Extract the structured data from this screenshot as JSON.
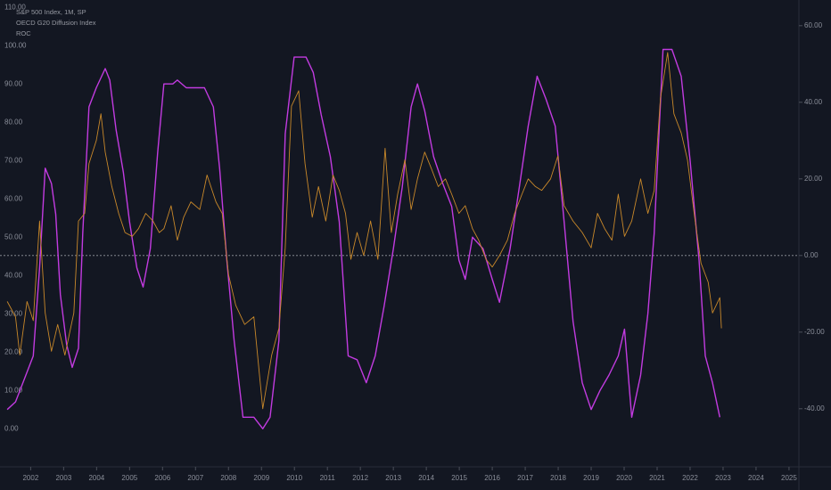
{
  "chart_data": {
    "type": "line",
    "title": "S&P 500 Index, 1M, SP",
    "series": [
      {
        "name": "OECD G20 Diffusion Index",
        "color": "#c23be0",
        "axis": "y",
        "x": [
          2001.29,
          2001.54,
          2001.81,
          2002.08,
          2002.27,
          2002.44,
          2002.63,
          2002.76,
          2002.9,
          2003.09,
          2003.26,
          2003.45,
          2003.58,
          2003.77,
          2003.99,
          2004.26,
          2004.4,
          2004.59,
          2004.81,
          2005.0,
          2005.22,
          2005.41,
          2005.63,
          2005.85,
          2006.04,
          2006.31,
          2006.45,
          2006.72,
          2006.99,
          2007.27,
          2007.54,
          2007.73,
          2007.95,
          2008.17,
          2008.44,
          2008.77,
          2009.04,
          2009.26,
          2009.53,
          2009.72,
          2009.99,
          2010.35,
          2010.57,
          2010.81,
          2011.09,
          2011.36,
          2011.63,
          2011.9,
          2012.18,
          2012.45,
          2012.72,
          2013.0,
          2013.27,
          2013.54,
          2013.73,
          2013.95,
          2014.22,
          2014.5,
          2014.77,
          2014.99,
          2015.18,
          2015.4,
          2015.72,
          2016.0,
          2016.22,
          2016.54,
          2016.82,
          2017.09,
          2017.36,
          2017.63,
          2017.91,
          2018.18,
          2018.45,
          2018.73,
          2019.0,
          2019.27,
          2019.54,
          2019.82,
          2020.01,
          2020.23,
          2020.5,
          2020.72,
          2020.91,
          2021.18,
          2021.45,
          2021.73,
          2022.0,
          2022.27,
          2022.46,
          2022.68,
          2022.9
        ],
        "values": [
          5,
          7,
          13,
          19,
          42,
          68,
          64,
          56,
          35,
          22,
          16,
          21,
          51,
          84,
          89,
          94,
          91,
          78,
          67,
          54,
          42,
          37,
          47,
          72,
          90,
          90,
          91,
          89,
          89,
          89,
          84,
          68,
          44,
          23,
          3,
          3,
          0,
          3,
          23,
          77,
          97,
          97,
          93,
          82,
          71,
          54,
          19,
          18,
          12,
          19,
          32,
          47,
          63,
          84,
          90,
          83,
          71,
          64,
          58,
          44,
          39,
          50,
          47,
          39,
          33,
          47,
          63,
          79,
          92,
          86,
          79,
          54,
          28,
          12,
          5,
          10,
          14,
          19,
          26,
          3,
          14,
          30,
          51,
          99,
          99,
          92,
          70,
          44,
          19,
          12,
          3
        ]
      },
      {
        "name": "ROC",
        "color": "#c8882a",
        "axis": "y2",
        "x": [
          2001.29,
          2001.54,
          2001.67,
          2001.89,
          2002.08,
          2002.27,
          2002.44,
          2002.63,
          2002.82,
          2003.04,
          2003.31,
          2003.45,
          2003.64,
          2003.77,
          2003.99,
          2004.13,
          2004.26,
          2004.46,
          2004.67,
          2004.86,
          2005.08,
          2005.27,
          2005.49,
          2005.71,
          2005.9,
          2006.04,
          2006.26,
          2006.45,
          2006.64,
          2006.86,
          2007.13,
          2007.35,
          2007.62,
          2007.81,
          2008.0,
          2008.22,
          2008.49,
          2008.77,
          2009.04,
          2009.31,
          2009.53,
          2009.72,
          2009.91,
          2010.13,
          2010.32,
          2010.54,
          2010.73,
          2010.95,
          2011.17,
          2011.36,
          2011.55,
          2011.71,
          2011.9,
          2012.1,
          2012.31,
          2012.53,
          2012.75,
          2012.94,
          2013.13,
          2013.35,
          2013.54,
          2013.73,
          2013.95,
          2014.14,
          2014.36,
          2014.58,
          2014.77,
          2014.99,
          2015.18,
          2015.4,
          2015.59,
          2015.81,
          2016.0,
          2016.22,
          2016.46,
          2016.68,
          2016.9,
          2017.09,
          2017.31,
          2017.5,
          2017.77,
          2017.99,
          2018.18,
          2018.45,
          2018.73,
          2019.0,
          2019.19,
          2019.41,
          2019.63,
          2019.82,
          2020.01,
          2020.23,
          2020.5,
          2020.72,
          2020.91,
          2021.1,
          2021.32,
          2021.51,
          2021.73,
          2021.92,
          2022.14,
          2022.33,
          2022.55,
          2022.68,
          2022.9,
          2022.95
        ],
        "values": [
          -12,
          -16,
          -26,
          -12,
          -17,
          9,
          -15,
          -25,
          -18,
          -26,
          -15,
          9,
          11,
          24,
          30,
          37,
          27,
          18,
          11,
          6,
          5,
          7,
          11,
          9,
          6,
          7,
          13,
          4,
          10,
          14,
          12,
          21,
          14,
          11,
          -5,
          -13,
          -18,
          -16,
          -40,
          -26,
          -19,
          2,
          39,
          43,
          24,
          10,
          18,
          9,
          21,
          17,
          11,
          -1,
          6,
          0,
          9,
          -1,
          28,
          6,
          16,
          25,
          12,
          20,
          27,
          23,
          18,
          20,
          16,
          11,
          13,
          7,
          4,
          -1,
          -3,
          0,
          4,
          11,
          16,
          20,
          18,
          17,
          20,
          26,
          13,
          9,
          6,
          2,
          11,
          7,
          4,
          16,
          5,
          9,
          20,
          11,
          17,
          41,
          53,
          37,
          32,
          25,
          10,
          -2,
          -7,
          -15,
          -11,
          -19
        ]
      }
    ],
    "xlim": [
      2001.07,
      2025.3
    ],
    "xticks": [
      2002,
      2003,
      2004,
      2005,
      2006,
      2007,
      2008,
      2009,
      2010,
      2011,
      2012,
      2013,
      2014,
      2015,
      2016,
      2017,
      2018,
      2019,
      2020,
      2021,
      2022,
      2023,
      2024,
      2025
    ],
    "ylim": [
      -9.5,
      111.9
    ],
    "yticks": [
      {
        "value": 0,
        "label": "0.00"
      },
      {
        "value": 10,
        "label": "10.00"
      },
      {
        "value": 20,
        "label": "20.00"
      },
      {
        "value": 30,
        "label": "30.00"
      },
      {
        "value": 40,
        "label": "40.00"
      },
      {
        "value": 50,
        "label": "50.00"
      },
      {
        "value": 60,
        "label": "60.00"
      },
      {
        "value": 70,
        "label": "70.00"
      },
      {
        "value": 80,
        "label": "80.00"
      },
      {
        "value": 90,
        "label": "90.00"
      },
      {
        "value": 100,
        "label": "100.00"
      },
      {
        "value": 110,
        "label": "110.00"
      }
    ],
    "y2lim": [
      -54.7,
      66.7
    ],
    "y2ticks": [
      {
        "value": -40,
        "label": "-40.00"
      },
      {
        "value": -20,
        "label": "-20.00"
      },
      {
        "value": 0,
        "label": "0.00"
      },
      {
        "value": 20,
        "label": "20.00"
      },
      {
        "value": 40,
        "label": "40.00"
      },
      {
        "value": 60,
        "label": "60.00"
      }
    ],
    "hline": {
      "value": 0,
      "axis": "y2",
      "color": "#9598a1"
    },
    "grid": false
  }
}
